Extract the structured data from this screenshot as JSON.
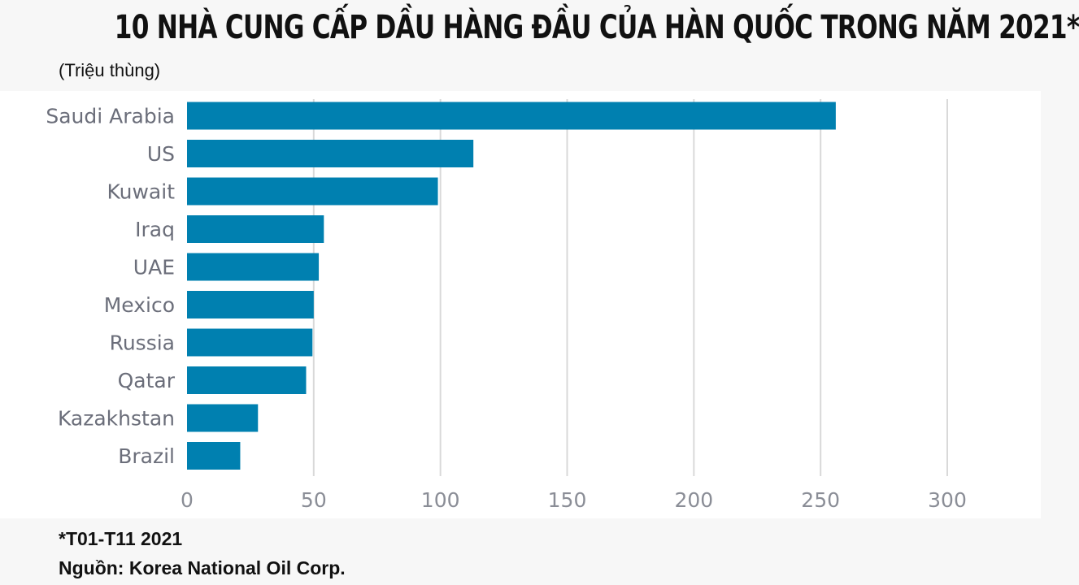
{
  "header": {
    "title": "10 NHÀ CUNG CẤP DẦU HÀNG ĐẦU CỦA HÀN QUỐC TRONG NĂM 2021*",
    "unit": "(Triệu thùng)"
  },
  "footer": {
    "note": "*T01-T11 2021",
    "source": "Nguồn: Korea National Oil Corp."
  },
  "colors": {
    "bar": "#0080b0",
    "grid": "#d9d9d9",
    "category_text": "#6b6e7a",
    "tick_text": "#8a8d96"
  },
  "chart_data": {
    "type": "bar",
    "orientation": "horizontal",
    "categories": [
      "Saudi Arabia",
      "US",
      "Kuwait",
      "Iraq",
      "UAE",
      "Mexico",
      "Russia",
      "Qatar",
      "Kazakhstan",
      "Brazil"
    ],
    "values": [
      256,
      113,
      99,
      54,
      52,
      50,
      49.5,
      47,
      28,
      21
    ],
    "xlim": [
      0,
      300
    ],
    "xticks": [
      "0",
      "50",
      "100",
      "150",
      "200",
      "250",
      "300"
    ],
    "grid": true,
    "legend": "none"
  }
}
